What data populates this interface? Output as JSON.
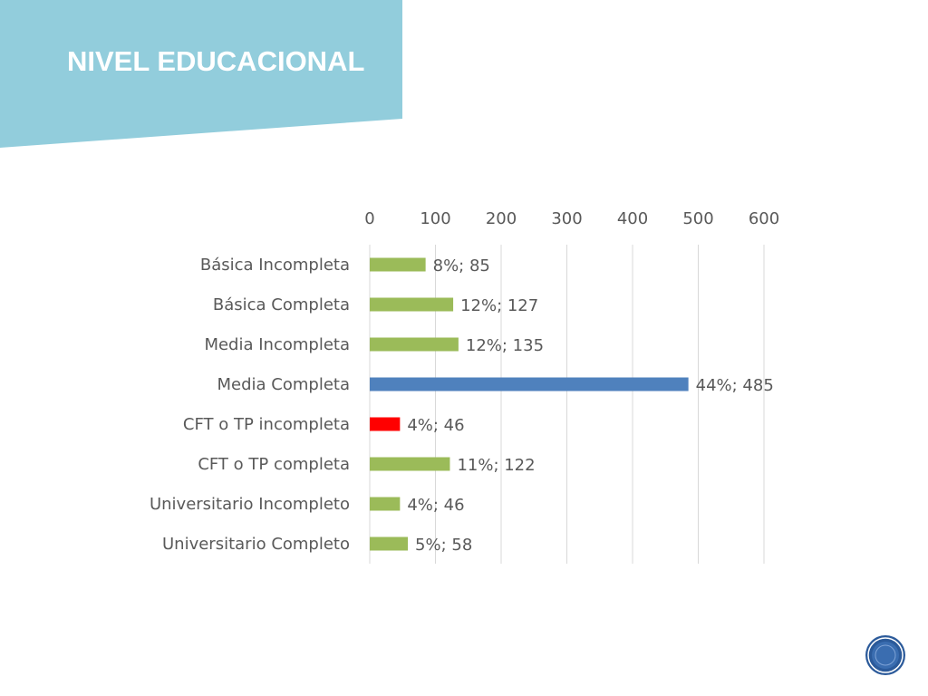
{
  "slide": {
    "title": "NIVEL EDUCACIONAL"
  },
  "colors": {
    "banner": "#92CDDC",
    "title_text": "#FFFFFF",
    "bar_default": "#9BBB59",
    "bar_highlight_blue": "#4F81BD",
    "bar_highlight_red": "#FF0000",
    "gridline": "#D9D9D9",
    "axis_text": "#595959",
    "logo_circle": "#2B5A9A"
  },
  "chart_data": {
    "type": "bar",
    "orientation": "horizontal",
    "title": "",
    "xlabel": "",
    "ylabel": "",
    "xlim": [
      0,
      600
    ],
    "x_ticks": [
      "0",
      "100",
      "200",
      "300",
      "400",
      "500",
      "600"
    ],
    "x_axis_position": "top",
    "grid": true,
    "legend": "none",
    "categories": [
      "Básica Incompleta",
      "Básica Completa",
      "Media Incompleta",
      "Media Completa",
      "CFT o TP incompleta",
      "CFT o TP completa",
      "Universitario Incompleto",
      "Universitario Completo"
    ],
    "values": [
      85,
      127,
      135,
      485,
      46,
      122,
      46,
      58
    ],
    "data_labels": [
      "8%; 85",
      "12%; 127",
      "12%; 135",
      "44%; 485",
      "4%; 46",
      "11%; 122",
      "4%; 46",
      "5%; 58"
    ],
    "bar_colors": [
      "#9BBB59",
      "#9BBB59",
      "#9BBB59",
      "#4F81BD",
      "#FF0000",
      "#9BBB59",
      "#9BBB59",
      "#9BBB59"
    ]
  },
  "logo": {
    "icon": "circular-emblem-icon"
  }
}
